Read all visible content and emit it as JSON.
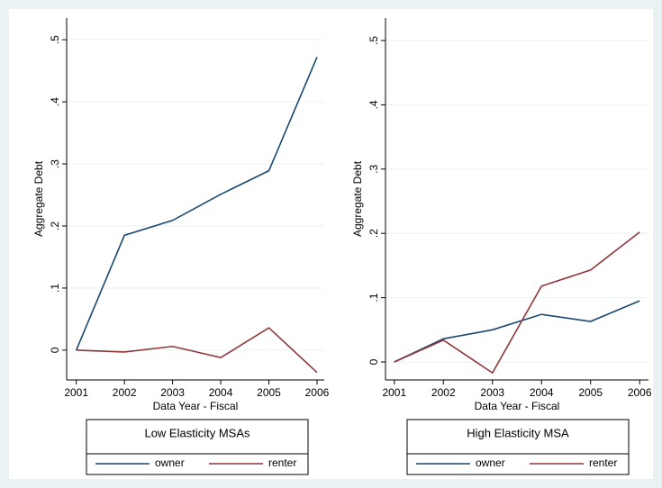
{
  "chart_data": [
    {
      "type": "line",
      "ylabel": "Aggregate Debt",
      "xlabel": "Data Year - Fiscal",
      "legend_title": "Low Elasticity MSAs",
      "x": [
        2001,
        2002,
        2003,
        2004,
        2005,
        2006
      ],
      "series": [
        {
          "name": "owner",
          "color": "#1a476f",
          "values": [
            0,
            0.185,
            0.209,
            0.251,
            0.289,
            0.472
          ]
        },
        {
          "name": "renter",
          "color": "#90353b",
          "values": [
            0,
            -0.003,
            0.006,
            -0.012,
            0.036,
            -0.036
          ]
        }
      ],
      "xlim": [
        2000.8,
        2006.15
      ],
      "xticks": [
        2001,
        2002,
        2003,
        2004,
        2005,
        2006
      ],
      "ylim": [
        -0.048,
        0.535
      ],
      "yticks": [
        0,
        {
          "value": 0.1,
          "label": ".1"
        },
        {
          "value": 0.2,
          "label": ".2"
        },
        {
          "value": 0.3,
          "label": ".3"
        },
        {
          "value": 0.4,
          "label": ".4"
        },
        {
          "value": 0.5,
          "label": ".5"
        }
      ],
      "grid": true
    },
    {
      "type": "line",
      "ylabel": "Aggregate Debt",
      "xlabel": "Data Year - Fiscal",
      "legend_title": "High Elasticity MSA",
      "x": [
        2001,
        2002,
        2003,
        2004,
        2005,
        2006
      ],
      "series": [
        {
          "name": "owner",
          "color": "#1a476f",
          "values": [
            0,
            0.036,
            0.05,
            0.074,
            0.063,
            0.095
          ]
        },
        {
          "name": "renter",
          "color": "#90353b",
          "values": [
            0,
            0.034,
            -0.017,
            0.118,
            0.143,
            0.202
          ]
        }
      ],
      "xlim": [
        2000.82,
        2006.18
      ],
      "xticks": [
        2001,
        2002,
        2003,
        2004,
        2005,
        2006
      ],
      "ylim": [
        -0.028,
        0.535
      ],
      "yticks": [
        0,
        {
          "value": 0.1,
          "label": ".1"
        },
        {
          "value": 0.2,
          "label": ".2"
        },
        {
          "value": 0.3,
          "label": ".3"
        },
        {
          "value": 0.4,
          "label": ".4"
        },
        {
          "value": 0.5,
          "label": ".5"
        }
      ],
      "grid": true
    }
  ]
}
